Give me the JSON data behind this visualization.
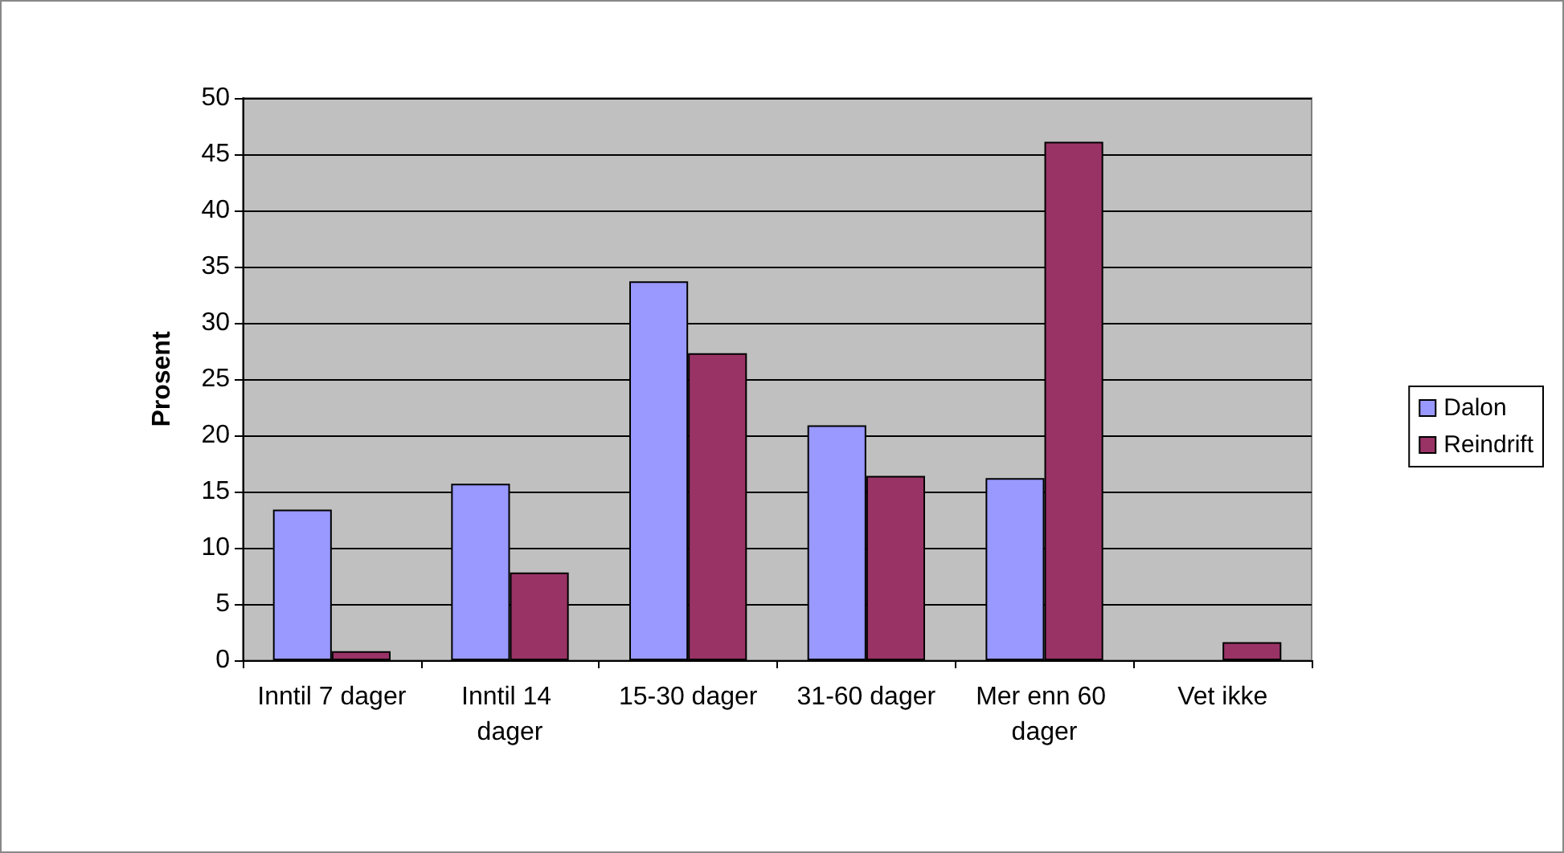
{
  "chart_data": {
    "type": "bar",
    "ylabel": "Prosent",
    "categories": [
      "Inntil 7 dager",
      "Inntil 14 dager",
      "15-30 dager",
      "31-60 dager",
      "Mer enn 60 dager",
      "Vet ikke"
    ],
    "series": [
      {
        "name": "Dalon",
        "color": "#9999ff",
        "values": [
          13.4,
          15.7,
          33.7,
          20.9,
          16.2,
          null
        ]
      },
      {
        "name": "Reindrift",
        "color": "#993366",
        "values": [
          0.8,
          7.8,
          27.3,
          16.4,
          46.1,
          1.6
        ]
      }
    ],
    "ylim": [
      0,
      50
    ],
    "yticks": [
      0,
      5,
      10,
      15,
      20,
      25,
      30,
      35,
      40,
      45,
      50
    ],
    "grid": "y",
    "legend": "right"
  }
}
